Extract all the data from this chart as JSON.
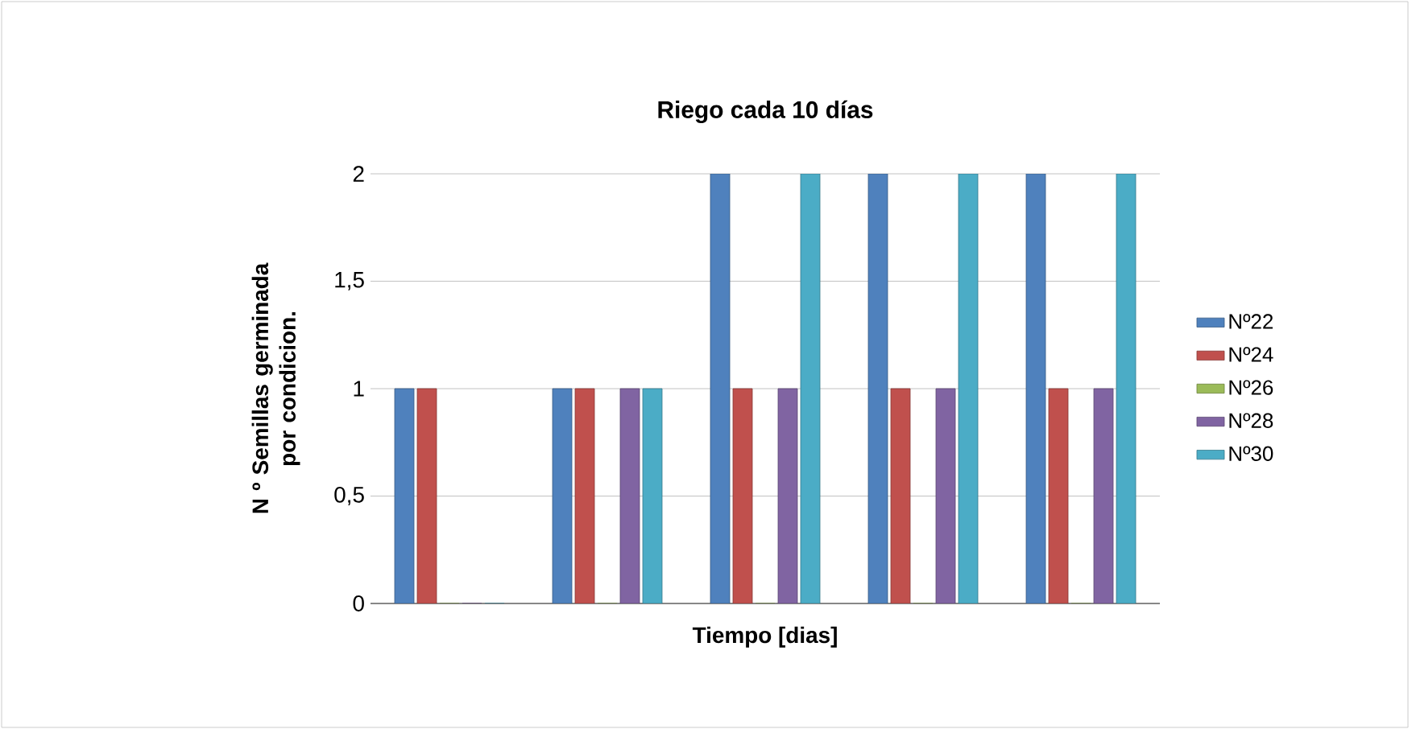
{
  "chart_data": {
    "type": "bar",
    "title": "Riego cada 10  días",
    "xlabel": "Tiempo [dias]",
    "ylabel": "N º  Semillas germinada por condicion.",
    "categories": [
      null,
      null,
      null,
      null,
      null
    ],
    "series": [
      {
        "name": "Nº22",
        "color": "#4f81bd",
        "values": [
          1,
          1,
          2,
          2,
          2
        ]
      },
      {
        "name": "Nº24",
        "color": "#c0504d",
        "values": [
          1,
          1,
          1,
          1,
          1
        ]
      },
      {
        "name": "Nº26",
        "color": "#9bbb59",
        "values": [
          0,
          0,
          0,
          0,
          0
        ]
      },
      {
        "name": "Nº28",
        "color": "#8064a2",
        "values": [
          0,
          1,
          1,
          1,
          1
        ]
      },
      {
        "name": "Nº30",
        "color": "#4bacc6",
        "values": [
          0,
          1,
          2,
          2,
          2
        ]
      }
    ],
    "ylim": [
      0,
      2
    ],
    "yticks": [
      0,
      {
        "value": 0.5,
        "label": "0,5"
      },
      1,
      {
        "value": 1.5,
        "label": "1,5"
      },
      2
    ],
    "grid": "y",
    "legend": "right"
  }
}
